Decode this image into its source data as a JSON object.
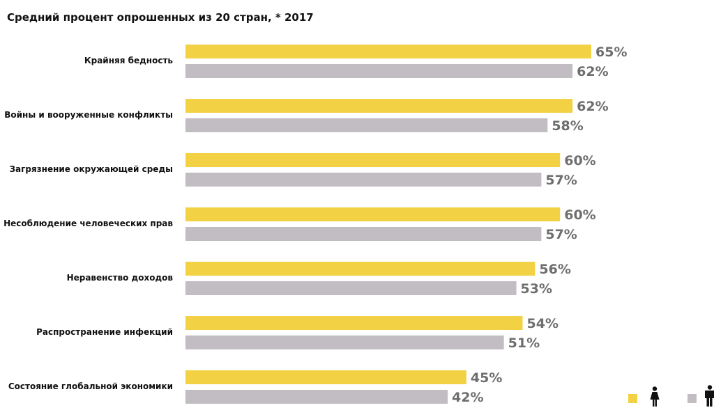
{
  "chart_data": {
    "type": "bar",
    "orientation": "horizontal",
    "title": "Средний процент опрошенных из 20 стран, * 2017",
    "categories": [
      "Крайняя бедность",
      "Войны и вооруженные конфликты",
      "Загрязнение окружающей среды",
      "Несоблюдение человеческих прав",
      "Неравенство доходов",
      "Распространение инфекций",
      "Состояние глобальной экономики"
    ],
    "series": [
      {
        "values": [
          65,
          62,
          60,
          60,
          56,
          54,
          45
        ],
        "labels": [
          "65%",
          "62%",
          "60%",
          "60%",
          "56%",
          "54%",
          "45%"
        ],
        "color": "#f2d244",
        "legend_icon": "female-icon"
      },
      {
        "values": [
          62,
          58,
          57,
          57,
          53,
          51,
          42
        ],
        "labels": [
          "62%",
          "58%",
          "57%",
          "57%",
          "53%",
          "51%",
          "42%"
        ],
        "color": "#c2bcc3",
        "legend_icon": "male-icon"
      }
    ],
    "xlim": [
      0,
      65
    ],
    "grid": false,
    "legend_position": "bottom-right",
    "value_label_color": "#6e6e6e"
  }
}
